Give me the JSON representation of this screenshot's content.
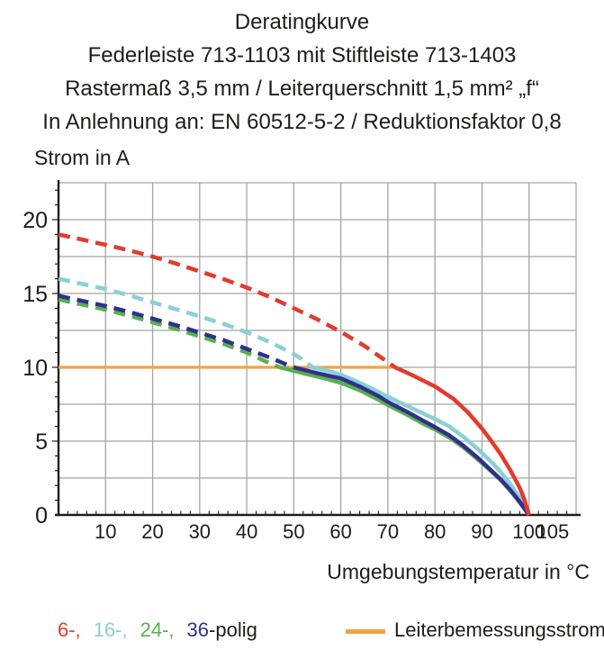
{
  "header": {
    "lines": [
      "Deratingkurve",
      "Federleiste 713-1103 mit Stiftleiste 713-1403",
      "Rastermaß 3,5 mm / Leiterquerschnitt 1,5 mm² „f“",
      "In Anlehnung an: EN 60512-5-2 / Reduktionsfaktor 0,8"
    ]
  },
  "chart_data": {
    "type": "line",
    "title": "Deratingkurve",
    "ylabel": "Strom in A",
    "xlabel": "Umgebungstemperatur in °C",
    "xlim": [
      0,
      110
    ],
    "ylim": [
      0,
      22.5
    ],
    "x_grid_step": 10,
    "y_grid_step": 2.5,
    "x_ticks": [
      10,
      20,
      30,
      40,
      50,
      60,
      70,
      80,
      90,
      100,
      105
    ],
    "y_ticks": [
      0,
      5,
      10,
      15,
      20
    ],
    "grid": true,
    "legend_position": "bottom",
    "rated_current_A": 10,
    "series": [
      {
        "name": "Leiterbemessungsstrom",
        "color": "#f2a440",
        "style": "solid",
        "role": "rated-current-line",
        "points": [
          [
            0,
            10
          ],
          [
            71.5,
            10
          ]
        ]
      },
      {
        "name": "24-polig",
        "color": "#57b150",
        "style": "dashed-above-rated",
        "solid_from": 47,
        "points": [
          [
            0,
            14.6
          ],
          [
            5,
            14.25
          ],
          [
            10,
            13.9
          ],
          [
            15,
            13.5
          ],
          [
            20,
            13.05
          ],
          [
            25,
            12.6
          ],
          [
            30,
            12.1
          ],
          [
            35,
            11.6
          ],
          [
            40,
            11.0
          ],
          [
            44,
            10.4
          ],
          [
            47,
            10.0
          ],
          [
            52,
            9.6
          ],
          [
            56,
            9.3
          ],
          [
            60,
            8.95
          ],
          [
            64,
            8.45
          ],
          [
            68,
            7.8
          ],
          [
            70,
            7.45
          ],
          [
            74,
            6.8
          ],
          [
            78,
            6.1
          ],
          [
            80,
            5.8
          ],
          [
            83,
            5.25
          ],
          [
            86,
            4.6
          ],
          [
            89,
            3.8
          ],
          [
            92,
            2.95
          ],
          [
            94,
            2.35
          ],
          [
            96,
            1.65
          ],
          [
            98,
            0.85
          ],
          [
            100,
            0
          ]
        ]
      },
      {
        "name": "16-polig",
        "color": "#8acfd7",
        "style": "dashed-above-rated",
        "solid_from": 54,
        "points": [
          [
            0,
            16.0
          ],
          [
            5,
            15.65
          ],
          [
            10,
            15.3
          ],
          [
            15,
            14.87
          ],
          [
            20,
            14.4
          ],
          [
            25,
            13.93
          ],
          [
            30,
            13.45
          ],
          [
            35,
            12.95
          ],
          [
            40,
            12.38
          ],
          [
            45,
            11.7
          ],
          [
            50,
            10.9
          ],
          [
            52,
            10.5
          ],
          [
            54,
            10.0
          ],
          [
            58,
            9.7
          ],
          [
            60,
            9.5
          ],
          [
            63,
            9.1
          ],
          [
            66,
            8.65
          ],
          [
            70,
            8.0
          ],
          [
            74,
            7.4
          ],
          [
            78,
            6.8
          ],
          [
            80,
            6.5
          ],
          [
            83,
            6.0
          ],
          [
            86,
            5.3
          ],
          [
            89,
            4.5
          ],
          [
            92,
            3.6
          ],
          [
            94,
            2.9
          ],
          [
            96,
            2.1
          ],
          [
            98,
            1.15
          ],
          [
            100,
            0
          ]
        ]
      },
      {
        "name": "36-polig",
        "color": "#31308a",
        "style": "dashed-above-rated",
        "solid_from": 50,
        "points": [
          [
            0,
            14.85
          ],
          [
            5,
            14.5
          ],
          [
            10,
            14.15
          ],
          [
            15,
            13.75
          ],
          [
            20,
            13.3
          ],
          [
            25,
            12.85
          ],
          [
            30,
            12.35
          ],
          [
            35,
            11.85
          ],
          [
            40,
            11.25
          ],
          [
            45,
            10.65
          ],
          [
            48,
            10.25
          ],
          [
            50,
            10.0
          ],
          [
            55,
            9.6
          ],
          [
            60,
            9.25
          ],
          [
            64,
            8.7
          ],
          [
            68,
            8.05
          ],
          [
            70,
            7.65
          ],
          [
            74,
            7.0
          ],
          [
            78,
            6.3
          ],
          [
            80,
            5.95
          ],
          [
            83,
            5.4
          ],
          [
            86,
            4.7
          ],
          [
            89,
            3.9
          ],
          [
            92,
            3.0
          ],
          [
            94,
            2.4
          ],
          [
            96,
            1.7
          ],
          [
            98,
            0.9
          ],
          [
            100,
            0
          ]
        ]
      },
      {
        "name": "6-polig",
        "color": "#e23b2e",
        "style": "dashed-above-rated",
        "solid_from": 71.5,
        "points": [
          [
            0,
            19.0
          ],
          [
            5,
            18.65
          ],
          [
            10,
            18.3
          ],
          [
            15,
            17.92
          ],
          [
            20,
            17.5
          ],
          [
            25,
            17.02
          ],
          [
            30,
            16.5
          ],
          [
            35,
            15.98
          ],
          [
            40,
            15.4
          ],
          [
            45,
            14.75
          ],
          [
            50,
            14.0
          ],
          [
            55,
            13.25
          ],
          [
            60,
            12.4
          ],
          [
            65,
            11.45
          ],
          [
            70,
            10.35
          ],
          [
            71.5,
            10.0
          ],
          [
            75,
            9.5
          ],
          [
            80,
            8.7
          ],
          [
            84,
            7.85
          ],
          [
            87,
            6.95
          ],
          [
            90,
            5.85
          ],
          [
            92,
            5.0
          ],
          [
            94,
            4.1
          ],
          [
            96,
            3.05
          ],
          [
            98,
            1.85
          ],
          [
            99,
            1.05
          ],
          [
            100,
            0
          ]
        ]
      }
    ]
  },
  "legend": {
    "poles": [
      {
        "label": "6-,",
        "color": "#e23b2e",
        "gap_after": true
      },
      {
        "label": "16-,",
        "color": "#8acfd7",
        "gap_after": true
      },
      {
        "label": "24-,",
        "color": "#57b150",
        "gap_after": true
      },
      {
        "label": "36",
        "color": "#31308a",
        "gap_after": false
      },
      {
        "label": "-polig",
        "color": "#1d1d1b",
        "gap_after": false
      }
    ],
    "rated": {
      "label": "Leiterbemessungsstrom",
      "color": "#f2a440"
    }
  },
  "colors": {
    "text": "#1d1d1b",
    "grid": "#a3a3a2",
    "axis": "#1d1d1b",
    "series_6": "#e23b2e",
    "series_16": "#8acfd7",
    "series_24": "#57b150",
    "series_36": "#31308a",
    "rated_line": "#f2a440"
  }
}
